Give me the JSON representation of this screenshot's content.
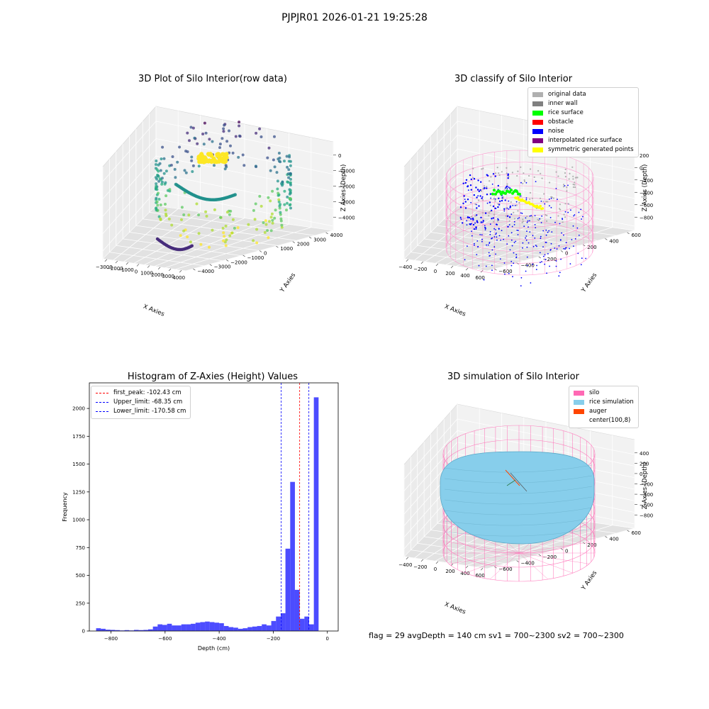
{
  "suptitle": "PJPJR01 2026-01-21 19:25:28",
  "status": {
    "text": "flag = 29  avgDepth = 140 cm  sv1 = 700~2300  sv2 = 700~2300"
  },
  "chart_data": [
    {
      "type": "scatter",
      "projection": "3d",
      "title": "3D Plot of Silo Interior(row data)",
      "xlabel": "X Axies",
      "ylabel": "Y Axies",
      "zlabel": "Z Axies (Depth)",
      "xticks": [
        "−3000",
        "−2000",
        "−1000",
        "0",
        "1000",
        "2000",
        "3000",
        "4000"
      ],
      "yticks": [
        "−4000",
        "−3000",
        "−2000",
        "−1000",
        "0",
        "1000",
        "2000",
        "3000",
        "4000"
      ],
      "zticks": [
        "−4000",
        "−3000",
        "−2000",
        "−1000",
        "0"
      ],
      "xlim": [
        -3000,
        4000
      ],
      "ylim": [
        -4000,
        4000
      ],
      "zlim": [
        -4500,
        0
      ],
      "colormap": "viridis",
      "grid": true
    },
    {
      "type": "scatter",
      "projection": "3d",
      "title": "3D classify of Silo Interior",
      "xlabel": "X Axies",
      "ylabel": "Y Axies",
      "zlabel": "Z Axies (Depth)",
      "xticks": [
        "−400",
        "−200",
        "0",
        "200",
        "400",
        "600"
      ],
      "yticks": [
        "−600",
        "−400",
        "−200",
        "0",
        "200",
        "400",
        "600"
      ],
      "zticks": [
        "−800",
        "−600",
        "−400",
        "−200",
        "0",
        "200"
      ],
      "legend_position": "top-right",
      "legend": [
        {
          "label": "original data",
          "color": "#b0b0b0"
        },
        {
          "label": "inner wall",
          "color": "#808080"
        },
        {
          "label": "rice surface",
          "color": "#00ff00"
        },
        {
          "label": "obstacle",
          "color": "#ff0000"
        },
        {
          "label": "noise",
          "color": "#0000ff"
        },
        {
          "label": "interpolated rice surface",
          "color": "#800080"
        },
        {
          "label": "symmetric generated points",
          "color": "#ffff00"
        }
      ],
      "silo_color": "#ff88c8",
      "grid": true
    },
    {
      "type": "bar",
      "title": "Histogram of Z-Axies (Height) Values",
      "xlabel": "Depth (cm)",
      "ylabel": "Frequency",
      "xlim": [
        -880,
        40
      ],
      "ylim": [
        0,
        2230
      ],
      "xticks": [
        -800,
        -600,
        -400,
        -200,
        0
      ],
      "xtick_labels": [
        "−800",
        "−600",
        "−400",
        "−200",
        "0"
      ],
      "yticks": [
        0,
        250,
        500,
        750,
        1000,
        1250,
        1500,
        1750,
        2000
      ],
      "bar_color": "#0000ff",
      "bar_alpha": 0.7,
      "bin_width": 17.5,
      "bin_left_edges": [
        -855,
        -837.5,
        -820,
        -802.5,
        -785,
        -767.5,
        -750,
        -732.5,
        -715,
        -697.5,
        -680,
        -662.5,
        -645,
        -627.5,
        -610,
        -592.5,
        -575,
        -557.5,
        -540,
        -522.5,
        -505,
        -487.5,
        -470,
        -452.5,
        -435,
        -417.5,
        -400,
        -382.5,
        -365,
        -347.5,
        -330,
        -312.5,
        -295,
        -277.5,
        -260,
        -242.5,
        -225,
        -207.5,
        -190,
        -172.5,
        -155,
        -137.5,
        -120,
        -102.5,
        -85,
        -67.5,
        -50,
        -32.5,
        -15
      ],
      "counts": [
        25,
        20,
        12,
        10,
        8,
        5,
        8,
        5,
        10,
        8,
        10,
        15,
        40,
        60,
        55,
        65,
        50,
        50,
        60,
        60,
        65,
        75,
        80,
        85,
        80,
        75,
        70,
        45,
        35,
        30,
        20,
        25,
        35,
        40,
        45,
        60,
        50,
        90,
        130,
        160,
        740,
        1340,
        370,
        110,
        130,
        60,
        2100,
        0,
        0
      ],
      "legend_position": "top-left",
      "vlines": [
        {
          "label": "first_peak: -102.43 cm",
          "x": -102.43,
          "color": "#ff0000"
        },
        {
          "label": "Upper_limit: -68.35 cm",
          "x": -68.35,
          "color": "#0000ff"
        },
        {
          "label": "Lower_limit: -170.58 cm",
          "x": -170.58,
          "color": "#0000ff"
        }
      ]
    },
    {
      "type": "surface",
      "projection": "3d",
      "title": "3D simulation of Silo Interior",
      "xlabel": "X Axies",
      "ylabel": "Y Axies",
      "zlabel": "Z Axies (Depth)",
      "xticks": [
        "−400",
        "−200",
        "0",
        "200",
        "400",
        "600"
      ],
      "yticks": [
        "−600",
        "−400",
        "−200",
        "0",
        "200",
        "400",
        "600"
      ],
      "zticks": [
        "−800",
        "−600",
        "−400",
        "−200",
        "0",
        "200",
        "400"
      ],
      "legend_position": "top-right",
      "legend": [
        {
          "label": "silo",
          "color": "#ff69b4"
        },
        {
          "label": "rice simulation",
          "color": "#87ceeb"
        },
        {
          "label": "auger",
          "color": "#ff4500"
        },
        {
          "label": "center(100,8)",
          "color": "#ffffff"
        }
      ],
      "grid": true
    }
  ]
}
